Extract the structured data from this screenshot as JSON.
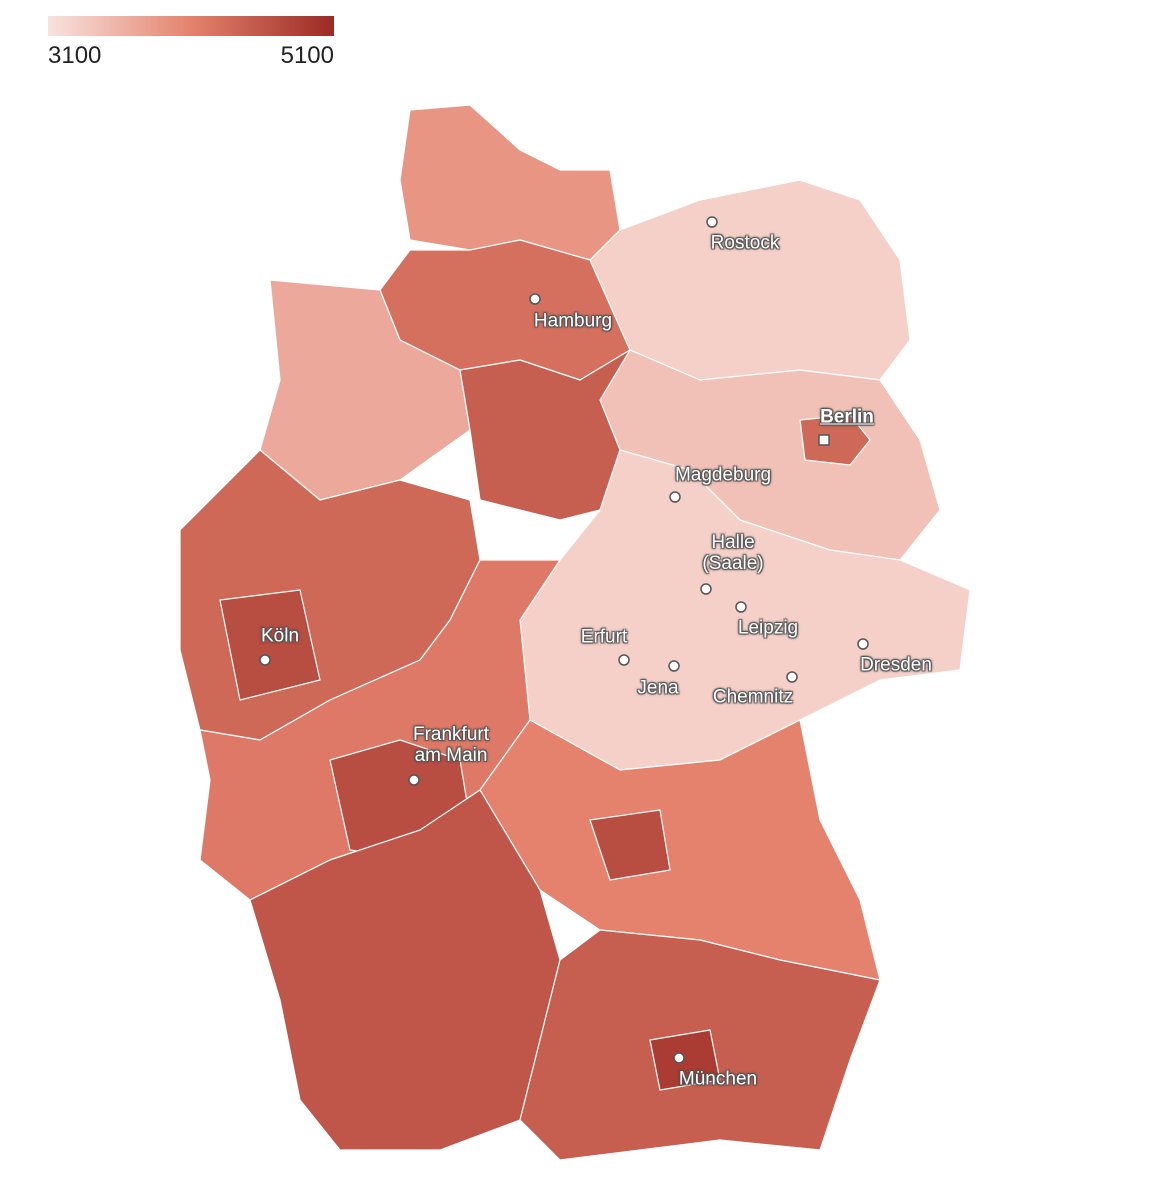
{
  "legend": {
    "min": 3100,
    "max": 5100,
    "colors": [
      "#f8e3df",
      "#e4826d",
      "#9b2a25"
    ]
  },
  "region_values": [
    3900,
    4300,
    3700,
    3300,
    3450,
    4400,
    4500,
    3300,
    4400,
    4200,
    4700,
    4100,
    4600,
    4500,
    4900,
    4700,
    4700
  ],
  "cities": [
    {
      "name": "Rostock",
      "marker": "dot"
    },
    {
      "name": "Hamburg",
      "marker": "dot"
    },
    {
      "name": "Berlin",
      "marker": "square"
    },
    {
      "name": "Magdeburg",
      "marker": "dot"
    },
    {
      "name": "Halle (Saale)",
      "marker": "dot"
    },
    {
      "name": "Leipzig",
      "marker": "dot"
    },
    {
      "name": "Dresden",
      "marker": "dot"
    },
    {
      "name": "Erfurt",
      "marker": "dot"
    },
    {
      "name": "Jena",
      "marker": "dot"
    },
    {
      "name": "Chemnitz",
      "marker": "dot"
    },
    {
      "name": "Köln",
      "marker": "dot"
    },
    {
      "name": "Frankfurt am Main",
      "marker": "dot"
    },
    {
      "name": "München",
      "marker": "dot"
    }
  ]
}
